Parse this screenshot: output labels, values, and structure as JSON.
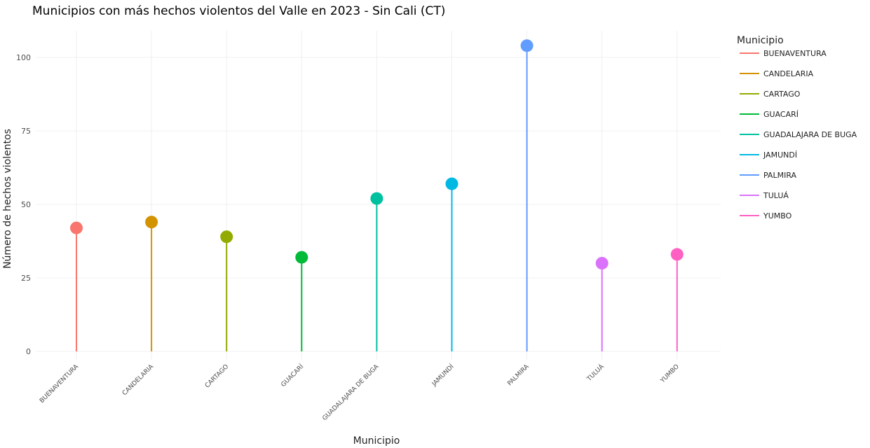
{
  "chart_data": {
    "type": "lollipop",
    "title": "Municipios con más hechos violentos del Valle en 2023 - Sin Cali (CT)",
    "xlabel": "Municipio",
    "ylabel": "Número de hechos violentos",
    "ylim": [
      0,
      108
    ],
    "yticks": [
      "0",
      "25",
      "50",
      "75",
      "100"
    ],
    "grid": true,
    "legend": {
      "title": "Municipio",
      "placement": "right"
    },
    "categories": [
      "BUENAVENTURA",
      "CANDELARIA",
      "CARTAGO",
      "GUACARÍ",
      "GUADALAJARA DE BUGA",
      "JAMUNDÍ",
      "PALMIRA",
      "TULUÁ",
      "YUMBO"
    ],
    "values": [
      42,
      44,
      39,
      32,
      52,
      57,
      104,
      30,
      33
    ],
    "colors": [
      "#F8766D",
      "#D39200",
      "#93AA00",
      "#00BA38",
      "#00C19F",
      "#00B9E3",
      "#619CFF",
      "#DB72FB",
      "#FF61C3"
    ]
  }
}
